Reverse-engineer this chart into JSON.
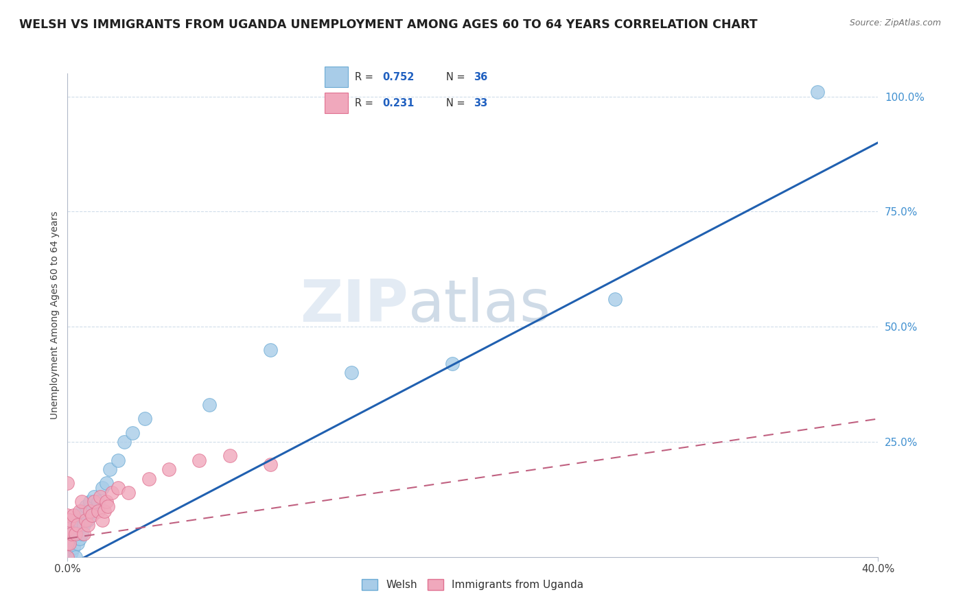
{
  "title": "WELSH VS IMMIGRANTS FROM UGANDA UNEMPLOYMENT AMONG AGES 60 TO 64 YEARS CORRELATION CHART",
  "source_text": "Source: ZipAtlas.com",
  "ylabel": "Unemployment Among Ages 60 to 64 years",
  "xlim": [
    0.0,
    0.4
  ],
  "ylim": [
    0.0,
    1.05
  ],
  "xtick_labels": [
    "0.0%",
    "40.0%"
  ],
  "xtick_values": [
    0.0,
    0.4
  ],
  "ytick_labels": [
    "25.0%",
    "50.0%",
    "75.0%",
    "100.0%"
  ],
  "ytick_values": [
    0.25,
    0.5,
    0.75,
    1.0
  ],
  "welsh_color": "#a8cce8",
  "welsh_edge_color": "#6aaad4",
  "uganda_color": "#f0a8bc",
  "uganda_edge_color": "#e07090",
  "welsh_R": 0.752,
  "welsh_N": 36,
  "uganda_R": 0.231,
  "uganda_N": 33,
  "welsh_line_color": "#2060b0",
  "uganda_line_color": "#c06080",
  "watermark_zip": "ZIP",
  "watermark_atlas": "atlas",
  "watermark_color_zip": "#c8d8ea",
  "watermark_color_atlas": "#a0b8d0",
  "welsh_scatter_x": [
    0.0,
    0.0,
    0.001,
    0.001,
    0.002,
    0.002,
    0.003,
    0.003,
    0.004,
    0.004,
    0.005,
    0.005,
    0.006,
    0.006,
    0.007,
    0.007,
    0.008,
    0.009,
    0.01,
    0.011,
    0.012,
    0.013,
    0.015,
    0.017,
    0.019,
    0.021,
    0.025,
    0.028,
    0.032,
    0.038,
    0.07,
    0.1,
    0.14,
    0.19,
    0.27,
    0.37
  ],
  "welsh_scatter_y": [
    0.0,
    0.02,
    0.0,
    0.04,
    0.01,
    0.06,
    0.02,
    0.07,
    0.0,
    0.05,
    0.03,
    0.08,
    0.04,
    0.09,
    0.05,
    0.1,
    0.07,
    0.11,
    0.08,
    0.12,
    0.1,
    0.13,
    0.12,
    0.15,
    0.16,
    0.19,
    0.21,
    0.25,
    0.27,
    0.3,
    0.33,
    0.45,
    0.4,
    0.42,
    0.56,
    1.01
  ],
  "uganda_scatter_x": [
    0.0,
    0.0,
    0.0,
    0.0,
    0.0,
    0.001,
    0.001,
    0.002,
    0.003,
    0.004,
    0.005,
    0.006,
    0.007,
    0.008,
    0.009,
    0.01,
    0.011,
    0.012,
    0.013,
    0.015,
    0.016,
    0.017,
    0.018,
    0.019,
    0.02,
    0.022,
    0.025,
    0.03,
    0.04,
    0.05,
    0.065,
    0.08,
    0.1
  ],
  "uganda_scatter_y": [
    0.0,
    0.03,
    0.06,
    0.09,
    0.16,
    0.03,
    0.08,
    0.05,
    0.09,
    0.05,
    0.07,
    0.1,
    0.12,
    0.05,
    0.08,
    0.07,
    0.1,
    0.09,
    0.12,
    0.1,
    0.13,
    0.08,
    0.1,
    0.12,
    0.11,
    0.14,
    0.15,
    0.14,
    0.17,
    0.19,
    0.21,
    0.22,
    0.2
  ],
  "welsh_line_x0": 0.0,
  "welsh_line_y0": -0.02,
  "welsh_line_x1": 0.4,
  "welsh_line_y1": 0.9,
  "uganda_line_x0": 0.0,
  "uganda_line_y0": 0.04,
  "uganda_line_x1": 0.4,
  "uganda_line_y1": 0.3,
  "background_color": "#ffffff",
  "grid_color": "#d0dcea",
  "legend_R_color": "#2060c0",
  "legend_N_color": "#2060c0",
  "legend_text_color": "#303030"
}
